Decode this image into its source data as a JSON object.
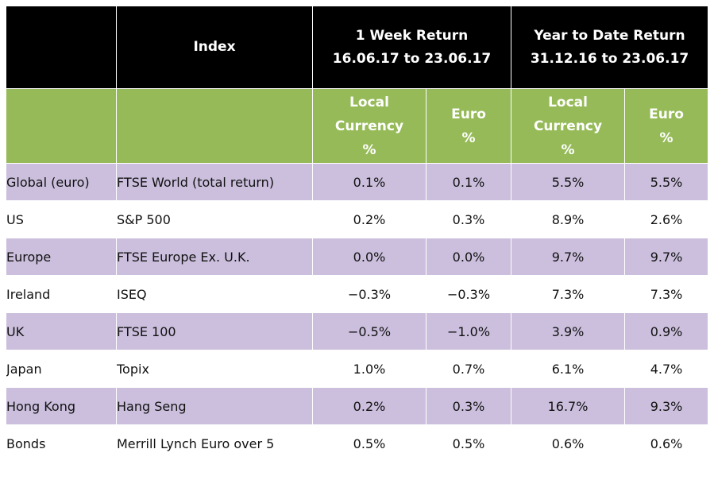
{
  "header": {
    "index_label": "Index",
    "week_title": "1 Week Return",
    "week_range": "16.06.17 to 23.06.17",
    "ytd_title": "Year to Date Return",
    "ytd_range": "31.12.16 to 23.06.17"
  },
  "subheader": {
    "local_line1": "Local",
    "local_line2": "Currency",
    "local_line3": "%",
    "euro_line1": "Euro",
    "euro_line2": "%"
  },
  "rows": [
    {
      "region": "Global (euro)",
      "index": "FTSE World (total return)",
      "week_local": "0.1%",
      "week_euro": "0.1%",
      "ytd_local": "5.5%",
      "ytd_euro": "5.5%"
    },
    {
      "region": "US",
      "index": "S&P 500",
      "week_local": "0.2%",
      "week_euro": "0.3%",
      "ytd_local": "8.9%",
      "ytd_euro": "2.6%"
    },
    {
      "region": "Europe",
      "index": "FTSE Europe Ex. U.K.",
      "week_local": "0.0%",
      "week_euro": "0.0%",
      "ytd_local": "9.7%",
      "ytd_euro": "9.7%"
    },
    {
      "region": "Ireland",
      "index": "ISEQ",
      "week_local": "−0.3%",
      "week_euro": "−0.3%",
      "ytd_local": "7.3%",
      "ytd_euro": "7.3%"
    },
    {
      "region": "UK",
      "index": "FTSE 100",
      "week_local": "−0.5%",
      "week_euro": "−1.0%",
      "ytd_local": "3.9%",
      "ytd_euro": "0.9%"
    },
    {
      "region": "Japan",
      "index": "Topix",
      "week_local": "1.0%",
      "week_euro": "0.7%",
      "ytd_local": "6.1%",
      "ytd_euro": "4.7%"
    },
    {
      "region": "Hong Kong",
      "index": "Hang Seng",
      "week_local": "0.2%",
      "week_euro": "0.3%",
      "ytd_local": "16.7%",
      "ytd_euro": "9.3%"
    },
    {
      "region": "Bonds",
      "index": "Merrill Lynch Euro over 5",
      "week_local": "0.5%",
      "week_euro": "0.5%",
      "ytd_local": "0.6%",
      "ytd_euro": "0.6%"
    }
  ],
  "colors": {
    "header_bg": "#000000",
    "subheader_bg": "#95ba57",
    "shaded_row_bg": "#cbbfdd",
    "plain_row_bg": "#ffffff"
  }
}
